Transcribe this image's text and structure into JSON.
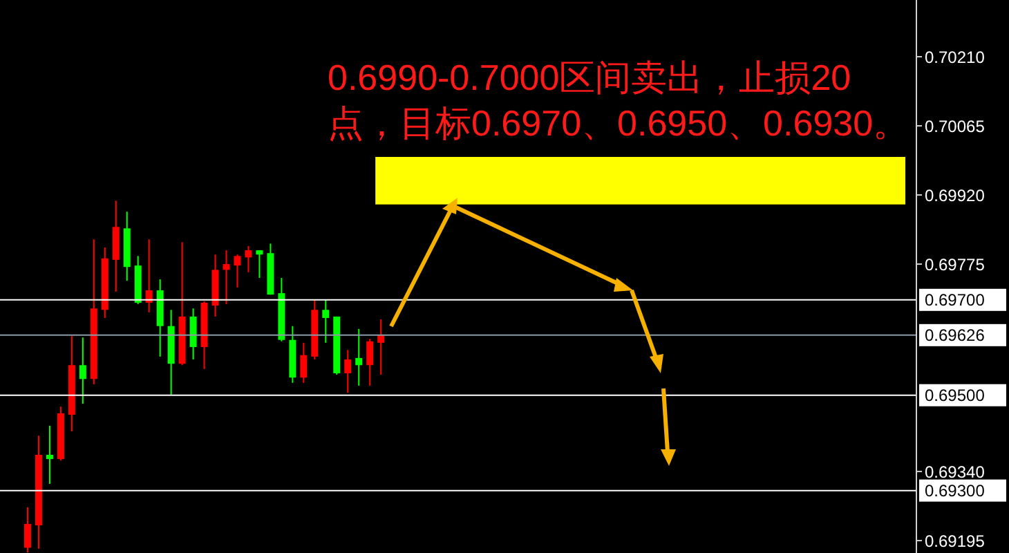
{
  "chart_data": {
    "type": "candlestick",
    "categories": [
      null,
      null,
      null,
      null,
      null,
      null,
      null,
      null,
      null,
      null,
      null,
      null,
      null,
      null,
      null,
      null,
      null,
      null,
      null,
      null,
      null,
      null,
      null,
      null,
      null,
      null,
      null,
      null,
      null,
      null,
      null,
      null,
      null,
      null,
      null,
      null,
      null,
      null,
      null,
      null,
      null,
      null,
      null,
      null,
      null,
      null,
      null,
      null,
      null,
      null,
      null,
      null,
      null,
      null,
      null,
      null,
      null,
      null,
      null,
      null,
      null,
      null,
      null,
      null,
      null,
      null,
      null,
      null,
      null,
      null,
      null,
      null,
      null,
      null,
      null,
      null,
      null,
      null,
      null,
      null,
      null,
      null,
      null
    ],
    "ohlc": [
      null,
      null,
      [
        0.6918,
        0.69265,
        0.6917,
        0.6923
      ],
      [
        0.69227,
        0.69415,
        0.69178,
        0.69375
      ],
      [
        0.69375,
        0.69436,
        0.69314,
        0.69366
      ],
      [
        0.69366,
        0.69476,
        0.69363,
        0.69462
      ],
      [
        0.69459,
        0.69624,
        0.69424,
        0.69563
      ],
      [
        0.69563,
        0.69621,
        0.69482,
        0.69534
      ],
      [
        0.69534,
        0.69827,
        0.69523,
        0.69682
      ],
      [
        0.69679,
        0.6981,
        0.69662,
        0.69787
      ],
      [
        0.69784,
        0.69908,
        0.69717,
        0.69853
      ],
      [
        0.6985,
        0.69885,
        0.6974,
        0.69769
      ],
      [
        0.69772,
        0.69792,
        0.69691,
        0.69694
      ],
      [
        0.69694,
        0.69827,
        0.69674,
        0.6972
      ],
      [
        0.6972,
        0.69743,
        0.69581,
        0.69645
      ],
      [
        0.69645,
        0.69679,
        0.695,
        0.69566
      ],
      [
        0.69566,
        0.69821,
        0.69563,
        0.69665
      ],
      [
        0.69665,
        0.69682,
        0.69575,
        0.69601
      ],
      [
        0.69601,
        0.69697,
        0.69555,
        0.69694
      ],
      [
        0.69688,
        0.69795,
        0.69665,
        0.69763
      ],
      [
        0.69763,
        0.69804,
        0.69691,
        0.69775
      ],
      [
        0.69772,
        0.69795,
        0.69726,
        0.69792
      ],
      [
        0.69789,
        0.69813,
        0.69758,
        0.69804
      ],
      [
        0.69804,
        0.69804,
        0.69746,
        0.69795
      ],
      [
        0.69798,
        0.69818,
        0.69711,
        0.69711
      ],
      [
        0.69714,
        0.69746,
        0.69613,
        0.69616
      ],
      [
        0.69616,
        0.69645,
        0.69526,
        0.69537
      ],
      [
        0.69537,
        0.6961,
        0.69526,
        0.69584
      ],
      [
        0.69581,
        0.697,
        0.69575,
        0.69679
      ],
      [
        0.69679,
        0.697,
        0.6961,
        0.69662
      ],
      [
        0.69665,
        0.69665,
        0.69543,
        0.69546
      ],
      [
        0.69546,
        0.69595,
        0.69505,
        0.69575
      ],
      [
        0.69578,
        0.69639,
        0.6952,
        0.69563
      ],
      [
        0.69563,
        0.69618,
        0.6952,
        0.69613
      ],
      [
        0.6961,
        0.69659,
        0.69543,
        0.69626
      ],
      null,
      null,
      null,
      null,
      null,
      null,
      null,
      null,
      null,
      null,
      null,
      null,
      null,
      null,
      null,
      null,
      null,
      null,
      null,
      null,
      null,
      null,
      null,
      null,
      null,
      null,
      null,
      null,
      null,
      null,
      null,
      null,
      null,
      null,
      null,
      null,
      null,
      null,
      null,
      null,
      null,
      null,
      null,
      null,
      null,
      null,
      null,
      null
    ],
    "colors": [
      null,
      null,
      "#ff0000",
      "#ff0000",
      "#00ff00",
      "#ff0000",
      "#ff0000",
      "#00ff00",
      "#ff0000",
      "#ff0000",
      "#ff0000",
      "#00ff00",
      "#00ff00",
      "#ff0000",
      "#00ff00",
      "#00ff00",
      "#ff0000",
      "#00ff00",
      "#ff0000",
      "#ff0000",
      "#ff0000",
      "#ff0000",
      "#ff0000",
      "#00ff00",
      "#00ff00",
      "#00ff00",
      "#00ff00",
      "#ff0000",
      "#ff0000",
      "#00ff00",
      "#00ff00",
      "#ff0000",
      "#00ff00",
      "#ff0000",
      "#ff0000",
      null,
      null,
      null,
      null,
      null,
      null,
      null,
      null,
      null,
      null,
      null,
      null,
      null,
      null,
      null,
      null,
      null,
      null,
      null,
      null,
      null,
      null,
      null,
      null,
      null,
      null,
      null,
      null,
      null,
      null,
      null,
      null,
      null,
      null,
      null,
      null,
      null,
      null,
      null,
      null,
      null,
      null,
      null,
      null,
      null,
      null,
      null,
      null
    ],
    "ylim": [
      0.69169,
      0.70329
    ],
    "yticks": [
      {
        "value": 0.69195,
        "label": "0.69195"
      },
      {
        "value": 0.6934,
        "label": "0.69340"
      },
      {
        "value": 0.69775,
        "label": "0.69775"
      },
      {
        "value": 0.6992,
        "label": "0.69920"
      },
      {
        "value": 0.70065,
        "label": "0.70065"
      },
      {
        "value": 0.7021,
        "label": "0.70210"
      }
    ],
    "tick_labels": "y",
    "grid": false,
    "legend": false,
    "ref_lines": [
      {
        "axis": "y",
        "value": 0.697,
        "label": "0.69700",
        "color": "#ffffff"
      },
      {
        "axis": "y",
        "value": 0.69626,
        "label": "0.69626",
        "color": "#8a9aa8"
      },
      {
        "axis": "y",
        "value": 0.695,
        "label": "0.69500",
        "color": "#ffffff"
      },
      {
        "axis": "y",
        "value": 0.693,
        "label": "0.69300",
        "color": "#ffffff"
      }
    ],
    "bands": [
      {
        "axis": "y",
        "from": 0.699,
        "to": 0.7,
        "color": "#ffff00",
        "label": "0.6990-0.7000区间卖出，止损20点，目标0.6970、0.6950、0.6930。"
      }
    ]
  }
}
